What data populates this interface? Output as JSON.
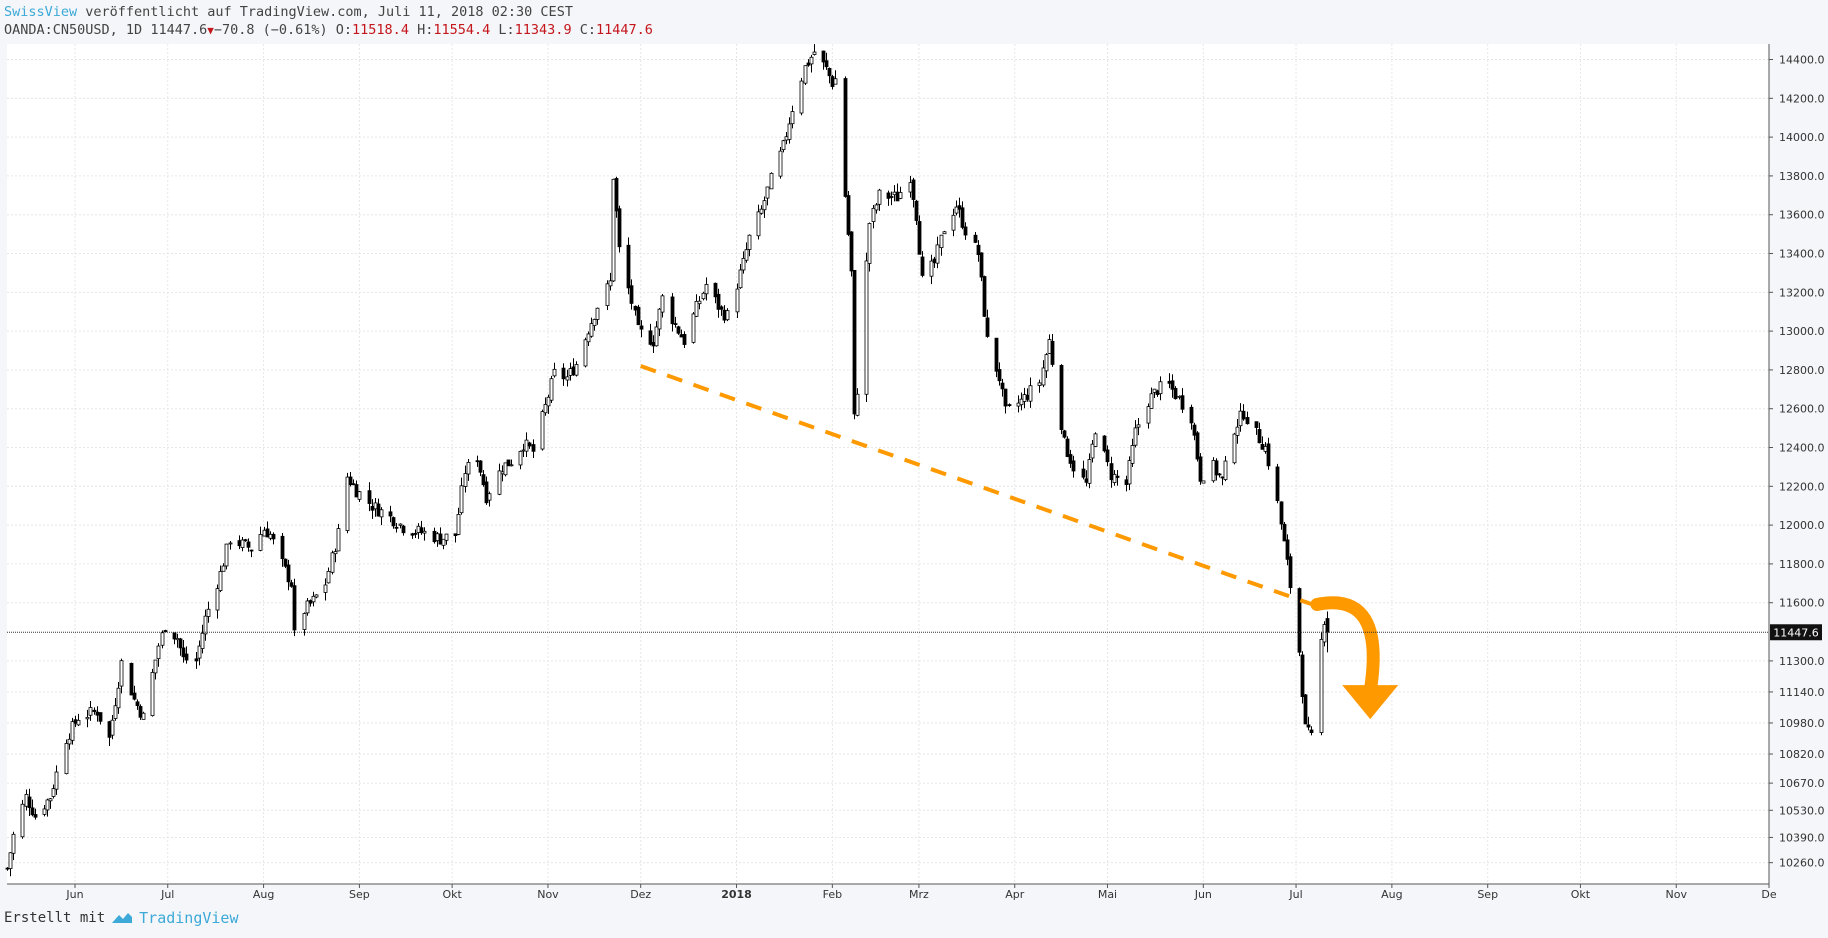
{
  "header": {
    "author": "SwissView",
    "published_text": " veröffentlicht auf TradingView.com, Juli 11, 2018 02:30 CEST",
    "symbol": "OANDA:CN50USD, 1D",
    "last": "11447.6",
    "change": "−70.8 (−0.61%)",
    "o_label": "O:",
    "o": "11518.4",
    "h_label": "H:",
    "h": "11554.4",
    "l_label": "L:",
    "l": "11343.9",
    "c_label": "C:",
    "c": "11447.6"
  },
  "footer": {
    "made_with": "Erstellt mit",
    "brand": "TradingView"
  },
  "colors": {
    "candle": "#000000",
    "trendline": "#ff9900",
    "arrow": "#ff9900",
    "grid": "#e6e6e6",
    "accent": "#3da9d8",
    "down": "#c4161c"
  },
  "chart_data": {
    "type": "candlestick",
    "instrument": "OANDA:CN50USD",
    "interval": "1D",
    "ylim": [
      10150,
      14480
    ],
    "x_range": [
      "2017-05-10",
      "2018-12-01"
    ],
    "y_ticks": [
      14400,
      14200,
      14000,
      13800,
      13600,
      13400,
      13200,
      13000,
      12800,
      12600,
      12400,
      12200,
      12000,
      11800,
      11600,
      11300,
      11140,
      10980,
      10820,
      10670,
      10530,
      10390,
      10260
    ],
    "x_ticks": [
      {
        "date": "2017-06-01",
        "label": "Jun",
        "bold": false
      },
      {
        "date": "2017-07-01",
        "label": "Jul",
        "bold": false
      },
      {
        "date": "2017-08-01",
        "label": "Aug",
        "bold": false
      },
      {
        "date": "2017-09-01",
        "label": "Sep",
        "bold": false
      },
      {
        "date": "2017-10-01",
        "label": "Okt",
        "bold": false
      },
      {
        "date": "2017-11-01",
        "label": "Nov",
        "bold": false
      },
      {
        "date": "2017-12-01",
        "label": "Dez",
        "bold": false
      },
      {
        "date": "2018-01-01",
        "label": "2018",
        "bold": true
      },
      {
        "date": "2018-02-01",
        "label": "Feb",
        "bold": false
      },
      {
        "date": "2018-03-01",
        "label": "Mrz",
        "bold": false
      },
      {
        "date": "2018-04-01",
        "label": "Apr",
        "bold": false
      },
      {
        "date": "2018-05-01",
        "label": "Mai",
        "bold": false
      },
      {
        "date": "2018-06-01",
        "label": "Jun",
        "bold": false
      },
      {
        "date": "2018-07-01",
        "label": "Jul",
        "bold": false
      },
      {
        "date": "2018-08-01",
        "label": "Aug",
        "bold": false
      },
      {
        "date": "2018-09-01",
        "label": "Sep",
        "bold": false
      },
      {
        "date": "2018-10-01",
        "label": "Okt",
        "bold": false
      },
      {
        "date": "2018-11-01",
        "label": "Nov",
        "bold": false
      },
      {
        "date": "2018-12-01",
        "label": "De",
        "bold": false
      }
    ],
    "last_price": 11447.6,
    "last_price_label": "11447.6",
    "price_path": [
      [
        "2017-05-10",
        10230
      ],
      [
        "2017-05-12",
        10400
      ],
      [
        "2017-05-16",
        10600
      ],
      [
        "2017-05-19",
        10500
      ],
      [
        "2017-05-24",
        10600
      ],
      [
        "2017-05-29",
        10900
      ],
      [
        "2017-06-02",
        11010
      ],
      [
        "2017-06-08",
        11040
      ],
      [
        "2017-06-12",
        10900
      ],
      [
        "2017-06-16",
        11290
      ],
      [
        "2017-06-20",
        11100
      ],
      [
        "2017-06-23",
        11010
      ],
      [
        "2017-06-28",
        11380
      ],
      [
        "2017-06-30",
        11480
      ],
      [
        "2017-07-04",
        11420
      ],
      [
        "2017-07-06",
        11310
      ],
      [
        "2017-07-10",
        11300
      ],
      [
        "2017-07-13",
        11520
      ],
      [
        "2017-07-18",
        11750
      ],
      [
        "2017-07-21",
        11930
      ],
      [
        "2017-07-25",
        11900
      ],
      [
        "2017-07-28",
        11880
      ],
      [
        "2017-08-01",
        11980
      ],
      [
        "2017-08-03",
        11950
      ],
      [
        "2017-08-07",
        11800
      ],
      [
        "2017-08-10",
        11700
      ],
      [
        "2017-08-11",
        11430
      ],
      [
        "2017-08-14",
        11560
      ],
      [
        "2017-08-17",
        11610
      ],
      [
        "2017-08-21",
        11700
      ],
      [
        "2017-08-25",
        11960
      ],
      [
        "2017-08-28",
        12250
      ],
      [
        "2017-08-31",
        12180
      ],
      [
        "2017-09-05",
        12100
      ],
      [
        "2017-09-08",
        12070
      ],
      [
        "2017-09-12",
        12030
      ],
      [
        "2017-09-15",
        11990
      ],
      [
        "2017-09-19",
        11970
      ],
      [
        "2017-09-22",
        11960
      ],
      [
        "2017-09-27",
        11930
      ],
      [
        "2017-10-02",
        11950
      ],
      [
        "2017-10-05",
        12280
      ],
      [
        "2017-10-09",
        12350
      ],
      [
        "2017-10-12",
        12150
      ],
      [
        "2017-10-17",
        12300
      ],
      [
        "2017-10-20",
        12330
      ],
      [
        "2017-10-24",
        12420
      ],
      [
        "2017-10-27",
        12380
      ],
      [
        "2017-10-31",
        12610
      ],
      [
        "2017-11-03",
        12780
      ],
      [
        "2017-11-07",
        12760
      ],
      [
        "2017-11-10",
        12830
      ],
      [
        "2017-11-14",
        13010
      ],
      [
        "2017-11-17",
        13130
      ],
      [
        "2017-11-21",
        13250
      ],
      [
        "2017-11-22",
        13800
      ],
      [
        "2017-11-24",
        13420
      ],
      [
        "2017-11-28",
        13150
      ],
      [
        "2017-11-30",
        13000
      ],
      [
        "2017-12-05",
        12950
      ],
      [
        "2017-12-08",
        13170
      ],
      [
        "2017-12-12",
        13030
      ],
      [
        "2017-12-15",
        12950
      ],
      [
        "2017-12-19",
        13120
      ],
      [
        "2017-12-22",
        13240
      ],
      [
        "2017-12-27",
        13100
      ],
      [
        "2017-12-29",
        13080
      ],
      [
        "2018-01-03",
        13350
      ],
      [
        "2018-01-05",
        13480
      ],
      [
        "2018-01-09",
        13620
      ],
      [
        "2018-01-12",
        13780
      ],
      [
        "2018-01-16",
        13950
      ],
      [
        "2018-01-19",
        14150
      ],
      [
        "2018-01-23",
        14360
      ],
      [
        "2018-01-26",
        14440
      ],
      [
        "2018-01-30",
        14350
      ],
      [
        "2018-02-01",
        14280
      ],
      [
        "2018-02-02",
        14300
      ],
      [
        "2018-02-05",
        13700
      ],
      [
        "2018-02-07",
        13300
      ],
      [
        "2018-02-08",
        12550
      ],
      [
        "2018-02-09",
        12700
      ],
      [
        "2018-02-13",
        13560
      ],
      [
        "2018-02-16",
        13700
      ],
      [
        "2018-02-22",
        13690
      ],
      [
        "2018-02-26",
        13800
      ],
      [
        "2018-02-28",
        13600
      ],
      [
        "2018-03-02",
        13260
      ],
      [
        "2018-03-06",
        13350
      ],
      [
        "2018-03-09",
        13530
      ],
      [
        "2018-03-13",
        13650
      ],
      [
        "2018-03-16",
        13520
      ],
      [
        "2018-03-20",
        13400
      ],
      [
        "2018-03-23",
        12950
      ],
      [
        "2018-03-27",
        12760
      ],
      [
        "2018-03-29",
        12580
      ],
      [
        "2018-04-03",
        12640
      ],
      [
        "2018-04-09",
        12740
      ],
      [
        "2018-04-12",
        12950
      ],
      [
        "2018-04-17",
        12420
      ],
      [
        "2018-04-20",
        12300
      ],
      [
        "2018-04-24",
        12210
      ],
      [
        "2018-04-27",
        12500
      ],
      [
        "2018-05-02",
        12260
      ],
      [
        "2018-05-07",
        12210
      ],
      [
        "2018-05-10",
        12480
      ],
      [
        "2018-05-14",
        12640
      ],
      [
        "2018-05-17",
        12700
      ],
      [
        "2018-05-21",
        12720
      ],
      [
        "2018-05-24",
        12650
      ],
      [
        "2018-05-28",
        12560
      ],
      [
        "2018-05-31",
        12250
      ],
      [
        "2018-06-04",
        12300
      ],
      [
        "2018-06-07",
        12230
      ],
      [
        "2018-06-11",
        12500
      ],
      [
        "2018-06-14",
        12580
      ],
      [
        "2018-06-18",
        12470
      ],
      [
        "2018-06-21",
        12400
      ],
      [
        "2018-06-25",
        12110
      ],
      [
        "2018-06-28",
        11800
      ],
      [
        "2018-07-02",
        11350
      ],
      [
        "2018-07-04",
        10950
      ],
      [
        "2018-07-06",
        10900
      ],
      [
        "2018-07-09",
        11400
      ],
      [
        "2018-07-10",
        11518
      ],
      [
        "2018-07-11",
        11447.6
      ]
    ],
    "annotations": {
      "trendline": [
        [
          "2017-12-01",
          12820
        ],
        [
          "2018-07-10",
          11570
        ]
      ],
      "arrow": {
        "start": [
          "2018-07-11",
          11560
        ],
        "end": [
          "2018-07-25",
          11000
        ],
        "direction": "down"
      }
    }
  }
}
